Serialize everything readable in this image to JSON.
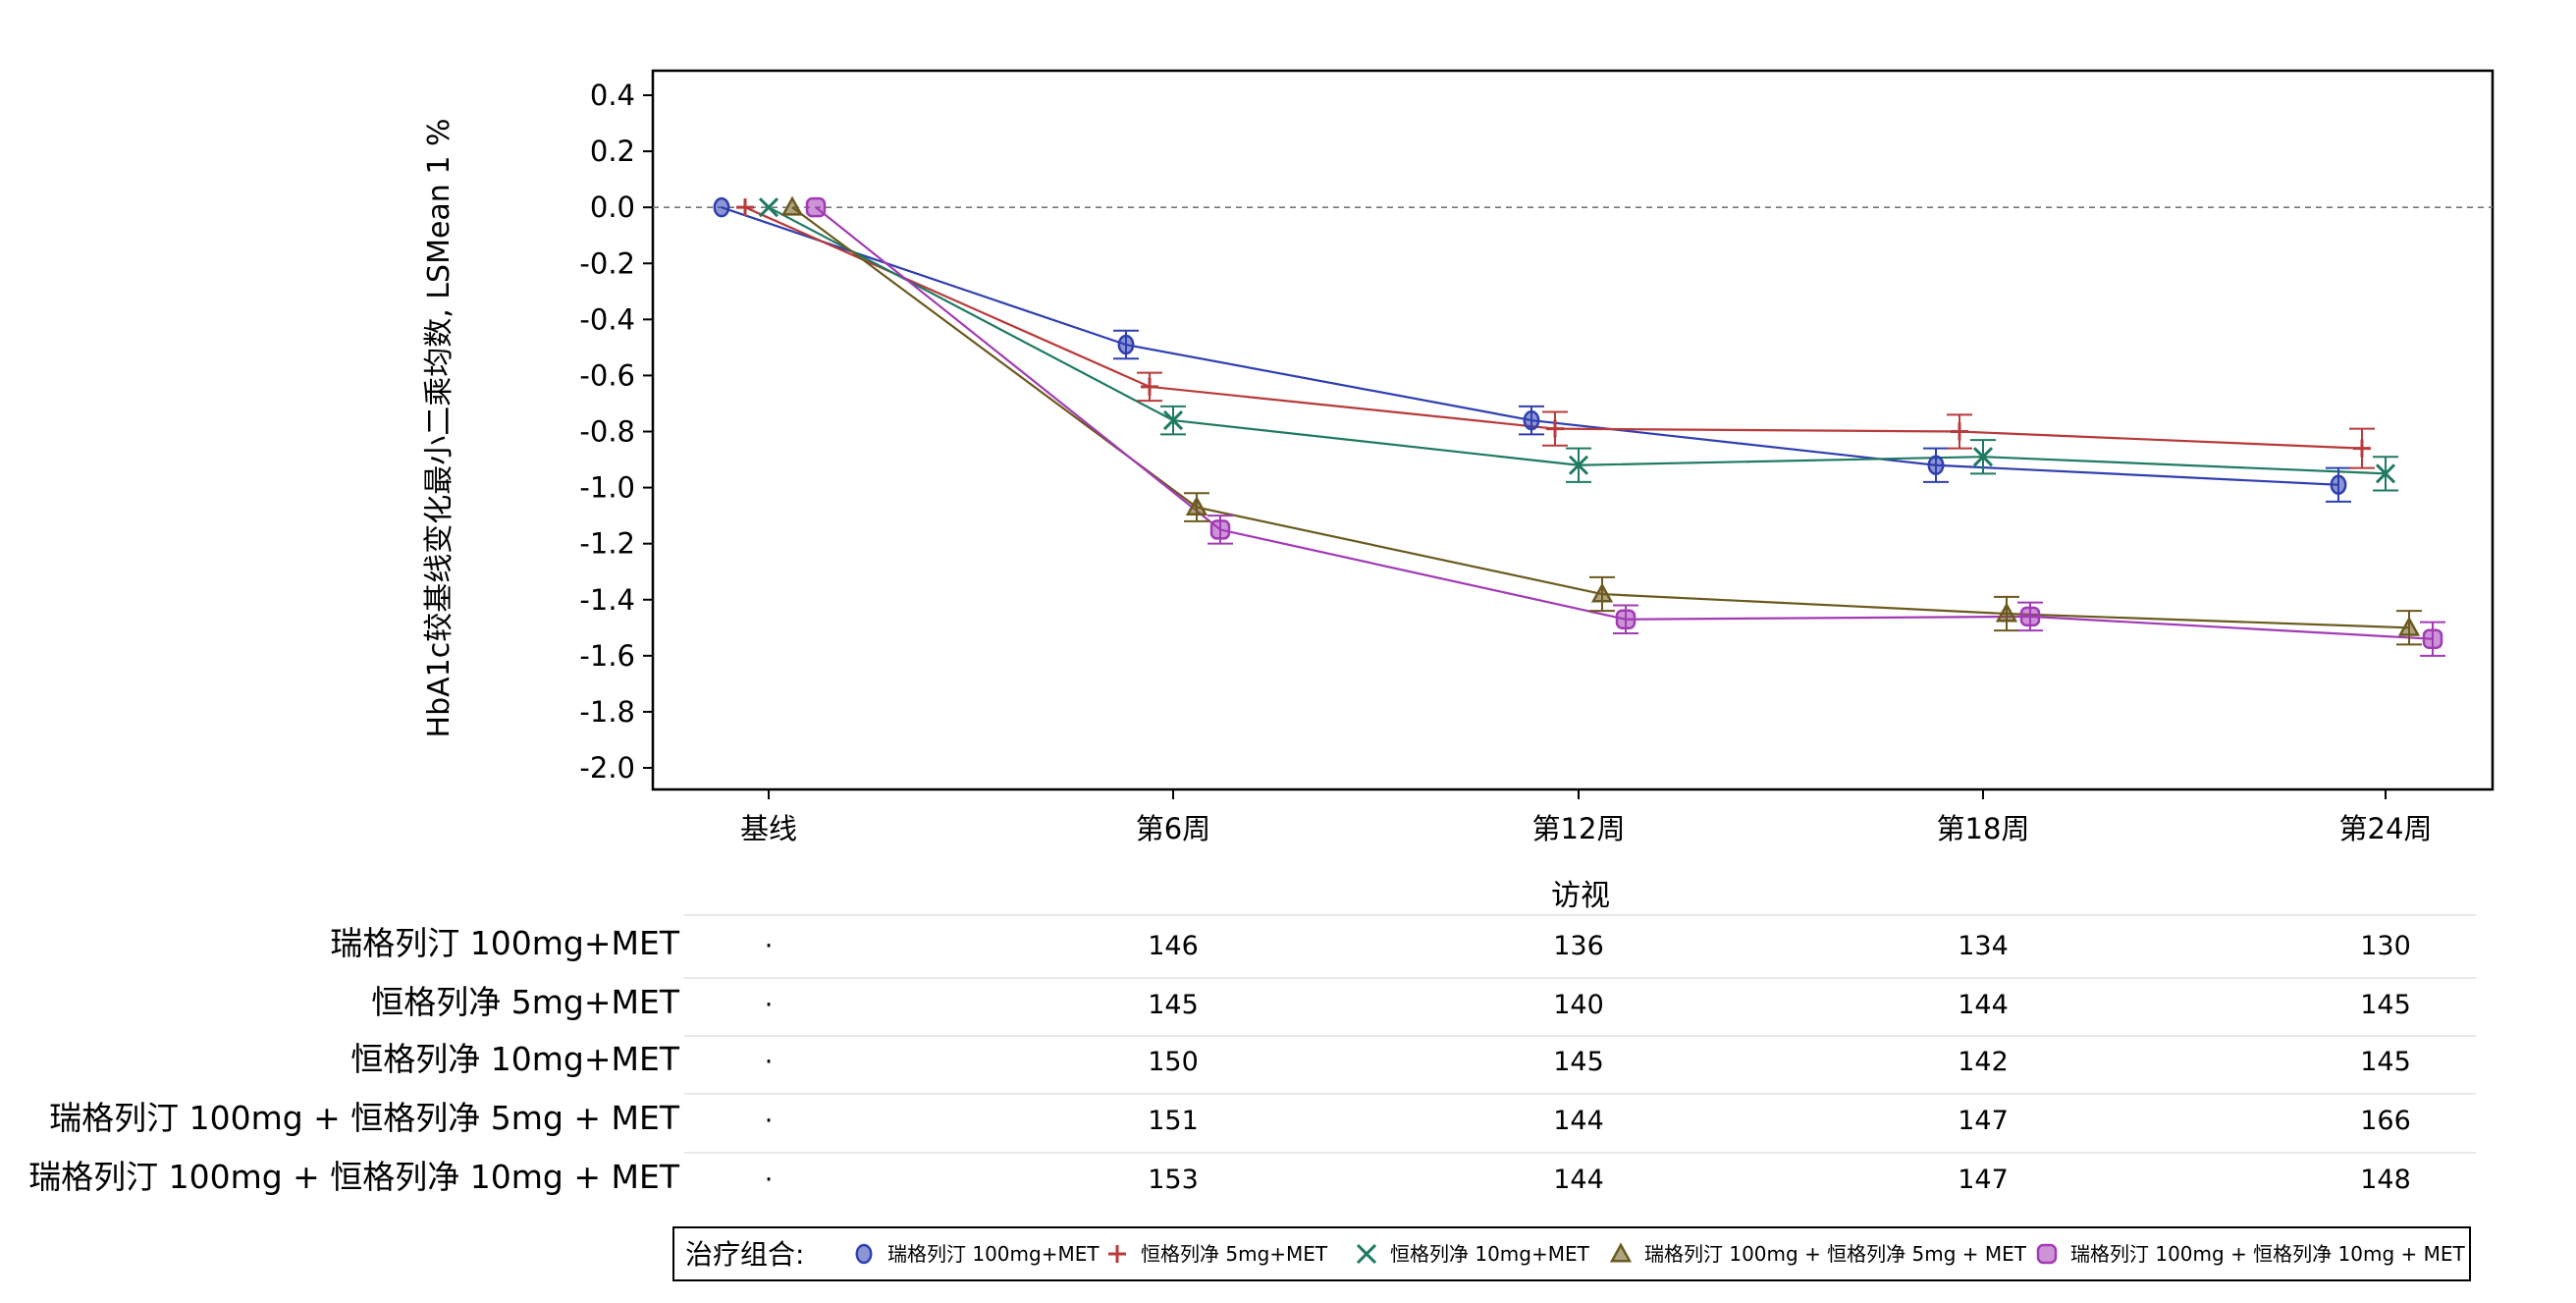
{
  "chart_data": {
    "type": "line",
    "ylabel": "HbA1c较基线变化最小二乘均数, LSMean 1 %",
    "xlabel": "访视",
    "ylim": [
      -2.0,
      0.4
    ],
    "yticks": [
      "0.4",
      "0.2",
      "0.0",
      "-0.2",
      "-0.4",
      "-0.6",
      "-0.8",
      "-1.0",
      "-1.2",
      "-1.4",
      "-1.6",
      "-1.8",
      "-2.0"
    ],
    "categories": [
      "基线",
      "第6周",
      "第12周",
      "第18周",
      "第24周"
    ],
    "reference_line": 0.0,
    "grid": false,
    "legend_position": "bottom",
    "legend_title": "治疗组合:",
    "series": [
      {
        "name": "瑞格列汀 100mg+MET",
        "symbol": "circle",
        "color": "#2f3fb0",
        "values": [
          0.0,
          -0.49,
          -0.76,
          -0.92,
          -0.99
        ],
        "errors": [
          0.0,
          0.05,
          0.05,
          0.06,
          0.06
        ],
        "counts": [
          "·",
          "146",
          "136",
          "134",
          "130"
        ]
      },
      {
        "name": "恒格列净 5mg+MET",
        "symbol": "plus",
        "color": "#b83a3a",
        "values": [
          0.0,
          -0.64,
          -0.79,
          -0.8,
          -0.86
        ],
        "errors": [
          0.0,
          0.05,
          0.06,
          0.06,
          0.07
        ],
        "counts": [
          "·",
          "145",
          "140",
          "144",
          "145"
        ]
      },
      {
        "name": "恒格列净 10mg+MET",
        "symbol": "x",
        "color": "#1f7a62",
        "values": [
          0.0,
          -0.76,
          -0.92,
          -0.89,
          -0.95
        ],
        "errors": [
          0.0,
          0.05,
          0.06,
          0.06,
          0.06
        ],
        "counts": [
          "·",
          "150",
          "145",
          "142",
          "145"
        ]
      },
      {
        "name": "瑞格列汀 100mg + 恒格列净 5mg + MET",
        "symbol": "triangle",
        "color": "#6b5a1e",
        "values": [
          0.0,
          -1.07,
          -1.38,
          -1.45,
          -1.5
        ],
        "errors": [
          0.0,
          0.05,
          0.06,
          0.06,
          0.06
        ],
        "counts": [
          "·",
          "151",
          "144",
          "147",
          "166"
        ]
      },
      {
        "name": "瑞格列汀 100mg + 恒格列净 10mg + MET",
        "symbol": "square",
        "color": "#a23ab5",
        "values": [
          0.0,
          -1.15,
          -1.47,
          -1.46,
          -1.54
        ],
        "errors": [
          0.0,
          0.05,
          0.05,
          0.05,
          0.06
        ],
        "counts": [
          "·",
          "153",
          "144",
          "147",
          "148"
        ]
      }
    ]
  }
}
